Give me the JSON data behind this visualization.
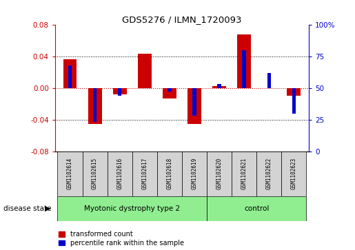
{
  "title": "GDS5276 / ILMN_1720093",
  "samples": [
    "GSM1102614",
    "GSM1102615",
    "GSM1102616",
    "GSM1102617",
    "GSM1102618",
    "GSM1102619",
    "GSM1102620",
    "GSM1102621",
    "GSM1102622",
    "GSM1102623"
  ],
  "red_values": [
    0.037,
    -0.045,
    -0.008,
    0.044,
    -0.013,
    -0.045,
    0.003,
    0.068,
    0.0,
    -0.01
  ],
  "blue_values_pct": [
    68,
    23,
    44,
    50,
    47,
    28,
    53,
    80,
    62,
    30
  ],
  "groups": [
    {
      "label": "Myotonic dystrophy type 2",
      "start": 0,
      "end": 5
    },
    {
      "label": "control",
      "start": 6,
      "end": 9
    }
  ],
  "ylim_left": [
    -0.08,
    0.08
  ],
  "ylim_right": [
    0,
    100
  ],
  "yticks_left": [
    -0.08,
    -0.04,
    0.0,
    0.04,
    0.08
  ],
  "yticks_right": [
    0,
    25,
    50,
    75,
    100
  ],
  "red_color": "#CC0000",
  "blue_color": "#0000CC",
  "green_color": "#90EE90",
  "gray_color": "#D3D3D3",
  "disease_state_label": "disease state",
  "legend_red": "transformed count",
  "legend_blue": "percentile rank within the sample"
}
